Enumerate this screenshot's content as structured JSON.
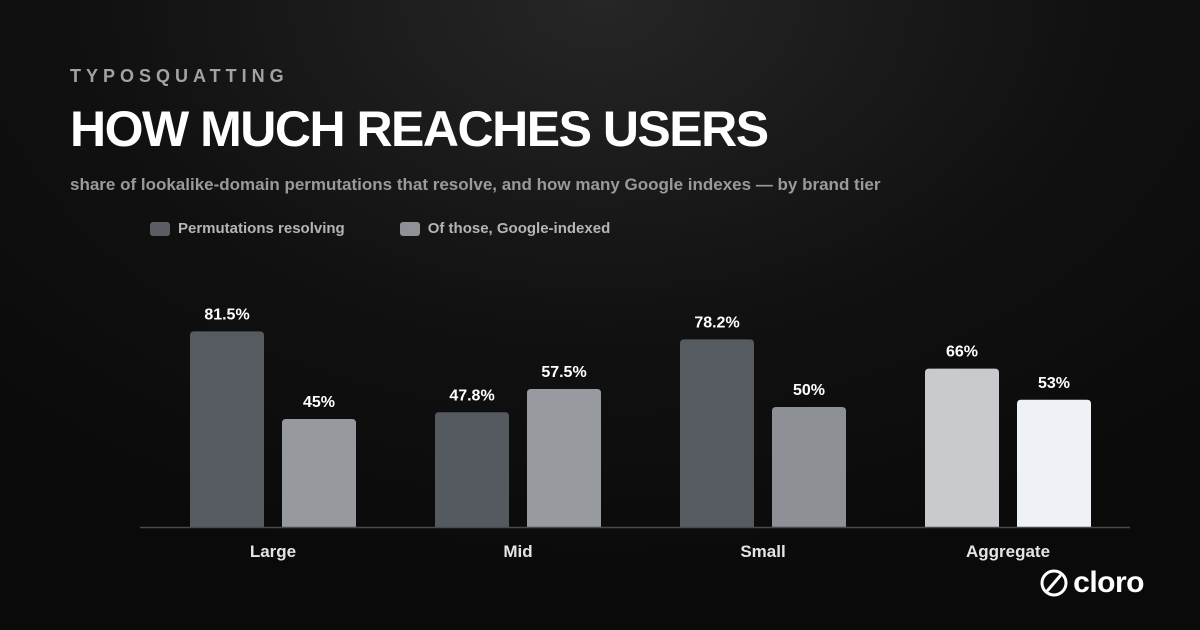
{
  "header": {
    "eyebrow": "TYPOSQUATTING",
    "title": "HOW MUCH REACHES USERS",
    "subtitle": "share of lookalike-domain permutations that resolve, and how many Google indexes — by brand tier"
  },
  "brand": {
    "name": "cloro",
    "icon": "slashed-circle-icon"
  },
  "chart_data": {
    "type": "bar",
    "categories": [
      "Large",
      "Mid",
      "Small",
      "Aggregate"
    ],
    "series": [
      {
        "name": "Permutations resolving",
        "values": [
          81.5,
          47.8,
          78.2,
          66
        ],
        "labels": [
          "81.5%",
          "47.8%",
          "78.2%",
          "66%"
        ]
      },
      {
        "name": "Of those, Google-indexed",
        "values": [
          45,
          57.5,
          50,
          53
        ],
        "labels": [
          "45%",
          "57.5%",
          "50%",
          "53%"
        ]
      }
    ],
    "legend_colors": [
      "#5a5e64",
      "#8e9196"
    ],
    "bar_colors": [
      [
        "#565b61",
        "#969a9f"
      ],
      [
        "#555a60",
        "#979a9e"
      ],
      [
        "#565b61",
        "#8d9095"
      ],
      [
        "#c8cacd",
        "#eef1f5"
      ]
    ],
    "ylim": [
      0,
      100
    ],
    "grid": false,
    "legend_position": "top-left"
  }
}
